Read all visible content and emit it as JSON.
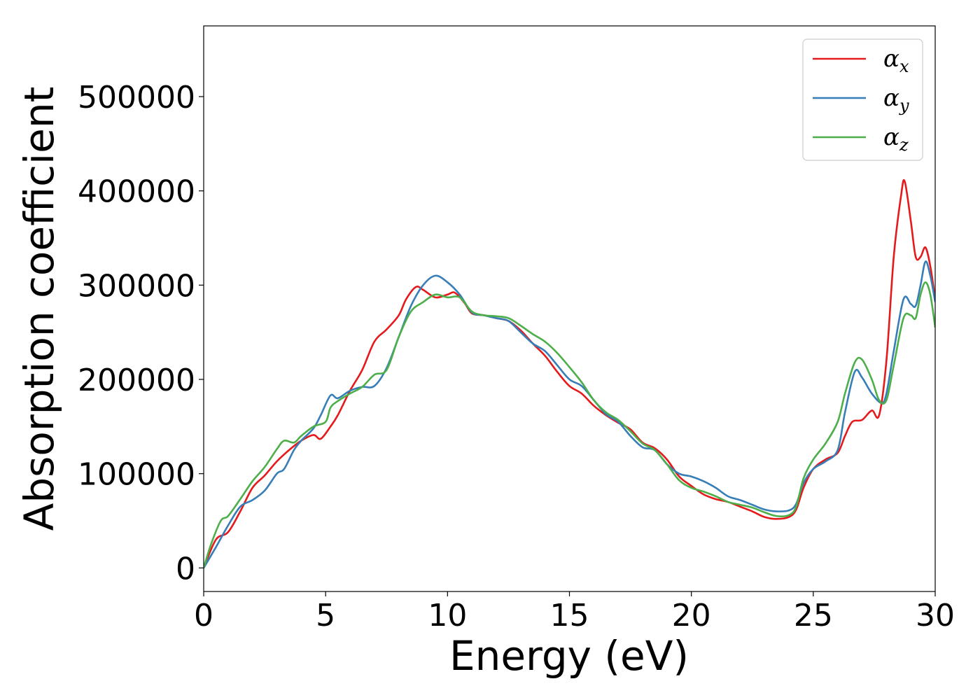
{
  "chart_data": {
    "type": "line",
    "title": "",
    "xlabel": "Energy (eV)",
    "ylabel": "Absorption coefficient",
    "xlim": [
      0,
      30
    ],
    "ylim": [
      -25000,
      575000
    ],
    "x_ticks": [
      0,
      5,
      10,
      15,
      20,
      25,
      30
    ],
    "y_ticks": [
      0,
      100000,
      200000,
      300000,
      400000,
      500000
    ],
    "grid": false,
    "legend_position": "top-right",
    "series": [
      {
        "name": "αx",
        "symbol": "α",
        "subscript": "x",
        "color": "#e41a1c",
        "points": [
          [
            0,
            0
          ],
          [
            0.5,
            30000
          ],
          [
            1.0,
            38000
          ],
          [
            1.5,
            60000
          ],
          [
            2.0,
            85000
          ],
          [
            2.5,
            98000
          ],
          [
            3.0,
            113000
          ],
          [
            3.5,
            125000
          ],
          [
            4.0,
            135000
          ],
          [
            4.5,
            141000
          ],
          [
            4.8,
            137000
          ],
          [
            5.2,
            150000
          ],
          [
            5.5,
            162000
          ],
          [
            6.0,
            188000
          ],
          [
            6.5,
            210000
          ],
          [
            7.0,
            240000
          ],
          [
            7.5,
            253000
          ],
          [
            8.0,
            268000
          ],
          [
            8.3,
            285000
          ],
          [
            8.7,
            298000
          ],
          [
            9.0,
            295000
          ],
          [
            9.5,
            287000
          ],
          [
            10.0,
            290000
          ],
          [
            10.3,
            292000
          ],
          [
            10.7,
            281000
          ],
          [
            11.0,
            270000
          ],
          [
            11.5,
            268000
          ],
          [
            12.0,
            265000
          ],
          [
            12.5,
            262000
          ],
          [
            13.0,
            252000
          ],
          [
            13.5,
            238000
          ],
          [
            14.0,
            225000
          ],
          [
            14.5,
            208000
          ],
          [
            15.0,
            193000
          ],
          [
            15.5,
            185000
          ],
          [
            16.0,
            172000
          ],
          [
            16.5,
            162000
          ],
          [
            17.0,
            154000
          ],
          [
            17.5,
            147000
          ],
          [
            18.0,
            133000
          ],
          [
            18.5,
            127000
          ],
          [
            19.0,
            115000
          ],
          [
            19.5,
            97000
          ],
          [
            20.0,
            87000
          ],
          [
            20.5,
            78000
          ],
          [
            21.0,
            73000
          ],
          [
            21.5,
            70000
          ],
          [
            22.0,
            65000
          ],
          [
            22.5,
            60000
          ],
          [
            23.0,
            54000
          ],
          [
            23.5,
            52000
          ],
          [
            24.0,
            54000
          ],
          [
            24.3,
            62000
          ],
          [
            24.6,
            85000
          ],
          [
            25.0,
            105000
          ],
          [
            25.5,
            115000
          ],
          [
            26.0,
            122000
          ],
          [
            26.3,
            140000
          ],
          [
            26.6,
            155000
          ],
          [
            27.0,
            157000
          ],
          [
            27.4,
            167000
          ],
          [
            27.7,
            162000
          ],
          [
            28.0,
            220000
          ],
          [
            28.3,
            330000
          ],
          [
            28.6,
            395000
          ],
          [
            28.75,
            410000
          ],
          [
            29.0,
            368000
          ],
          [
            29.2,
            330000
          ],
          [
            29.4,
            330000
          ],
          [
            29.6,
            340000
          ],
          [
            29.8,
            320000
          ],
          [
            30.0,
            285000
          ]
        ]
      },
      {
        "name": "αy",
        "symbol": "α",
        "subscript": "y",
        "color": "#377eb8",
        "points": [
          [
            0,
            0
          ],
          [
            0.5,
            22000
          ],
          [
            1.0,
            45000
          ],
          [
            1.5,
            65000
          ],
          [
            2.0,
            72000
          ],
          [
            2.5,
            82000
          ],
          [
            3.0,
            100000
          ],
          [
            3.3,
            105000
          ],
          [
            3.7,
            125000
          ],
          [
            4.0,
            135000
          ],
          [
            4.5,
            148000
          ],
          [
            4.8,
            162000
          ],
          [
            5.2,
            183000
          ],
          [
            5.5,
            180000
          ],
          [
            6.0,
            188000
          ],
          [
            6.5,
            192000
          ],
          [
            7.0,
            193000
          ],
          [
            7.5,
            212000
          ],
          [
            8.0,
            245000
          ],
          [
            8.5,
            278000
          ],
          [
            9.0,
            300000
          ],
          [
            9.5,
            310000
          ],
          [
            10.0,
            303000
          ],
          [
            10.5,
            290000
          ],
          [
            11.0,
            271000
          ],
          [
            11.5,
            268000
          ],
          [
            12.0,
            265000
          ],
          [
            12.5,
            262000
          ],
          [
            13.0,
            250000
          ],
          [
            13.5,
            238000
          ],
          [
            14.0,
            230000
          ],
          [
            14.5,
            215000
          ],
          [
            15.0,
            200000
          ],
          [
            15.5,
            193000
          ],
          [
            16.0,
            178000
          ],
          [
            16.5,
            163000
          ],
          [
            17.0,
            155000
          ],
          [
            17.5,
            140000
          ],
          [
            18.0,
            128000
          ],
          [
            18.5,
            125000
          ],
          [
            19.0,
            110000
          ],
          [
            19.5,
            100000
          ],
          [
            20.0,
            97000
          ],
          [
            20.5,
            92000
          ],
          [
            21.0,
            85000
          ],
          [
            21.5,
            76000
          ],
          [
            22.0,
            72000
          ],
          [
            22.5,
            67000
          ],
          [
            23.0,
            62000
          ],
          [
            23.5,
            60000
          ],
          [
            24.0,
            61000
          ],
          [
            24.3,
            68000
          ],
          [
            24.6,
            90000
          ],
          [
            25.0,
            105000
          ],
          [
            25.5,
            113000
          ],
          [
            26.0,
            125000
          ],
          [
            26.3,
            165000
          ],
          [
            26.7,
            208000
          ],
          [
            27.0,
            202000
          ],
          [
            27.4,
            185000
          ],
          [
            27.8,
            175000
          ],
          [
            28.0,
            185000
          ],
          [
            28.3,
            230000
          ],
          [
            28.7,
            285000
          ],
          [
            29.0,
            280000
          ],
          [
            29.2,
            278000
          ],
          [
            29.4,
            300000
          ],
          [
            29.6,
            325000
          ],
          [
            29.8,
            310000
          ],
          [
            30.0,
            282000
          ]
        ]
      },
      {
        "name": "αz",
        "symbol": "α",
        "subscript": "z",
        "color": "#4daf4a",
        "points": [
          [
            0,
            0
          ],
          [
            0.3,
            25000
          ],
          [
            0.7,
            50000
          ],
          [
            1.0,
            55000
          ],
          [
            1.5,
            73000
          ],
          [
            2.0,
            92000
          ],
          [
            2.5,
            107000
          ],
          [
            3.0,
            126000
          ],
          [
            3.3,
            135000
          ],
          [
            3.7,
            133000
          ],
          [
            4.0,
            140000
          ],
          [
            4.5,
            150000
          ],
          [
            5.0,
            155000
          ],
          [
            5.2,
            170000
          ],
          [
            5.5,
            177000
          ],
          [
            6.0,
            185000
          ],
          [
            6.5,
            192000
          ],
          [
            7.0,
            205000
          ],
          [
            7.5,
            210000
          ],
          [
            8.0,
            245000
          ],
          [
            8.5,
            272000
          ],
          [
            9.0,
            282000
          ],
          [
            9.5,
            290000
          ],
          [
            10.0,
            287000
          ],
          [
            10.5,
            287000
          ],
          [
            11.0,
            272000
          ],
          [
            11.5,
            268000
          ],
          [
            12.0,
            267000
          ],
          [
            12.5,
            265000
          ],
          [
            13.0,
            257000
          ],
          [
            13.5,
            248000
          ],
          [
            14.0,
            240000
          ],
          [
            14.5,
            228000
          ],
          [
            15.0,
            213000
          ],
          [
            15.5,
            197000
          ],
          [
            16.0,
            178000
          ],
          [
            16.5,
            165000
          ],
          [
            17.0,
            157000
          ],
          [
            17.5,
            145000
          ],
          [
            18.0,
            132000
          ],
          [
            18.5,
            125000
          ],
          [
            19.0,
            110000
          ],
          [
            19.5,
            93000
          ],
          [
            20.0,
            85000
          ],
          [
            20.5,
            81000
          ],
          [
            21.0,
            76000
          ],
          [
            21.5,
            70000
          ],
          [
            22.0,
            67000
          ],
          [
            22.5,
            64000
          ],
          [
            23.0,
            59000
          ],
          [
            23.5,
            55000
          ],
          [
            24.0,
            56000
          ],
          [
            24.3,
            65000
          ],
          [
            24.6,
            95000
          ],
          [
            25.0,
            115000
          ],
          [
            25.5,
            132000
          ],
          [
            26.0,
            155000
          ],
          [
            26.3,
            185000
          ],
          [
            26.7,
            218000
          ],
          [
            27.0,
            221000
          ],
          [
            27.4,
            200000
          ],
          [
            27.7,
            178000
          ],
          [
            28.0,
            178000
          ],
          [
            28.3,
            215000
          ],
          [
            28.7,
            265000
          ],
          [
            29.0,
            268000
          ],
          [
            29.2,
            265000
          ],
          [
            29.4,
            290000
          ],
          [
            29.6,
            303000
          ],
          [
            29.8,
            290000
          ],
          [
            30.0,
            255000
          ]
        ]
      }
    ]
  }
}
